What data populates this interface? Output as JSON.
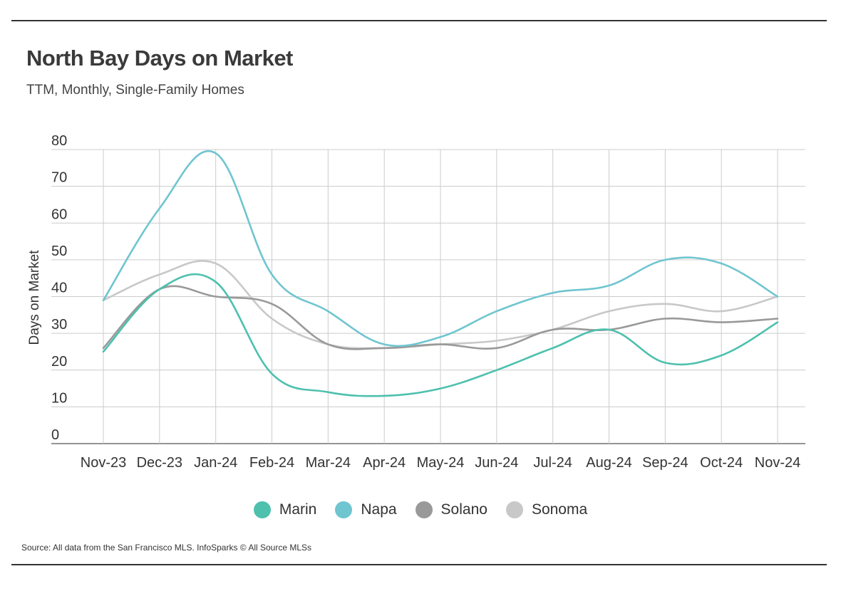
{
  "header": {
    "title": "North Bay Days on Market",
    "subtitle": "TTM, Monthly, Single-Family Homes"
  },
  "footer": {
    "source": "Source:  All data from the San Francisco MLS. InfoSparks © All Source MLSs"
  },
  "chart_data": {
    "type": "line",
    "title": "North Bay Days on Market",
    "subtitle": "TTM, Monthly, Single-Family Homes",
    "xlabel": "",
    "ylabel": "Days on Market",
    "ylim": [
      0,
      80
    ],
    "yticks": [
      0,
      10,
      20,
      30,
      40,
      50,
      60,
      70,
      80
    ],
    "grid": true,
    "legend_position": "bottom",
    "categories": [
      "Nov-23",
      "Dec-23",
      "Jan-24",
      "Feb-24",
      "Mar-24",
      "Apr-24",
      "May-24",
      "Jun-24",
      "Jul-24",
      "Aug-24",
      "Sep-24",
      "Oct-24",
      "Nov-24"
    ],
    "series": [
      {
        "name": "Marin",
        "color": "#4dc0ae",
        "values": [
          25,
          42,
          44,
          19,
          14,
          13,
          15,
          20,
          26,
          31,
          22,
          24,
          33
        ]
      },
      {
        "name": "Napa",
        "color": "#6fc5d0",
        "values": [
          39,
          64,
          79,
          46,
          36,
          27,
          29,
          36,
          41,
          43,
          50,
          49,
          40
        ]
      },
      {
        "name": "Solano",
        "color": "#999999",
        "values": [
          26,
          42,
          40,
          38,
          27,
          26,
          27,
          26,
          31,
          31,
          34,
          33,
          34
        ]
      },
      {
        "name": "Sonoma",
        "color": "#c8c8c8",
        "values": [
          39,
          46,
          49,
          34,
          27,
          26,
          27,
          28,
          31,
          36,
          38,
          36,
          40
        ]
      }
    ]
  }
}
